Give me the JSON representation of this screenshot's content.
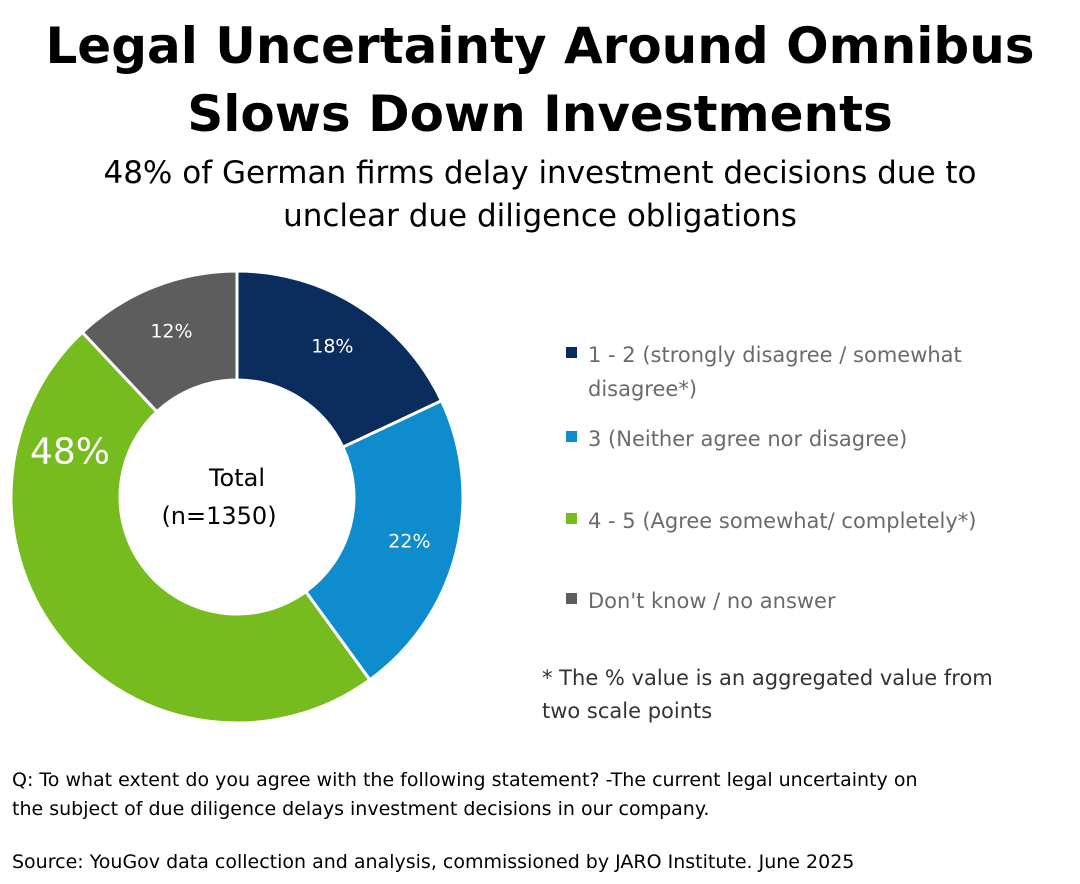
{
  "title": {
    "line1": "Legal Uncertainty Around Omnibus",
    "line2": "Slows Down Investments"
  },
  "subtitle": {
    "line1": "48% of German firms delay investment decisions due to",
    "line2": "unclear due diligence obligations"
  },
  "center_label": {
    "line1": "Total",
    "line2": "(n=1350)"
  },
  "legend": [
    {
      "label_line1": "1 - 2 (strongly disagree / somewhat",
      "label_line2": "disagree*)",
      "color": "#0b2d5e"
    },
    {
      "label_line1": "3 (Neither agree nor disagree)",
      "label_line2": "",
      "color": "#0e8ccd"
    },
    {
      "label_line1": "4 - 5 (Agree somewhat/ completely*)",
      "label_line2": "",
      "color": "#77bc1f"
    },
    {
      "label_line1": "Don't know / no answer",
      "label_line2": "",
      "color": "#5d5d5d"
    }
  ],
  "footnote": {
    "line1": "* The % value is an aggregated value from",
    "line2": "two scale points"
  },
  "question": {
    "line1": "Q: To what extent do you agree with the following statement? -The current legal uncertainty on",
    "line2": "the subject of due diligence delays investment decisions in our company."
  },
  "source": "Source: YouGov data collection and analysis, commissioned by JARO Institute. June 2025",
  "chart_data": {
    "type": "pie",
    "donut": true,
    "categories": [
      "1 - 2 (strongly disagree / somewhat disagree*)",
      "3 (Neither agree nor disagree)",
      "4 - 5 (Agree somewhat/ completely*)",
      "Don't know / no answer"
    ],
    "values": [
      18,
      22,
      48,
      12
    ],
    "labels": [
      "18%",
      "22%",
      "48%",
      "12%"
    ],
    "colors": [
      "#0b2d5e",
      "#0e8ccd",
      "#77bc1f",
      "#5d5d5d"
    ],
    "legend_position": "right"
  }
}
